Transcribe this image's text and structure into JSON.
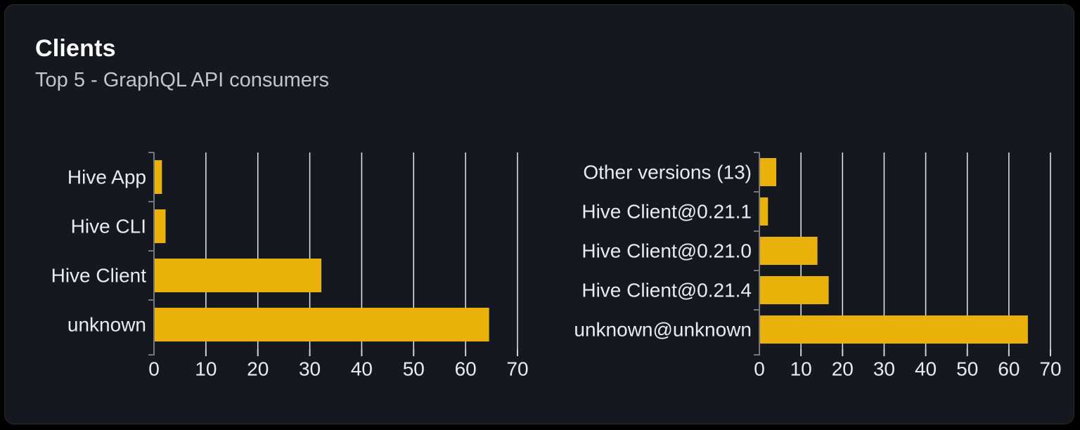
{
  "card": {
    "title": "Clients",
    "subtitle": "Top 5 - GraphQL API consumers"
  },
  "colors": {
    "bar": "#eab10b",
    "gridline": "#e6e8ec",
    "axis": "#74777d",
    "x_tick": "#cfd3d8",
    "chart_text": "#e9ebee",
    "card_background": "#15181e",
    "page_background": "#000000",
    "title_text": "#ffffff",
    "subtitle_text": "#c2c6cc"
  },
  "chart_data": [
    {
      "id": "clients-by-name",
      "type": "bar",
      "orientation": "horizontal",
      "title": "",
      "categories": [
        "Hive App",
        "Hive CLI",
        "Hive Client",
        "unknown"
      ],
      "values": [
        1.4,
        2.1,
        32.1,
        64.4
      ],
      "xlabel": "",
      "ylabel": "",
      "xlim": [
        0,
        70
      ],
      "xticks": [
        0,
        10,
        20,
        30,
        40,
        50,
        60,
        70
      ],
      "grid": true,
      "legend": false
    },
    {
      "id": "clients-by-version",
      "type": "bar",
      "orientation": "horizontal",
      "title": "",
      "categories": [
        "Other versions (13)",
        "Hive Client@0.21.1",
        "Hive Client@0.21.0",
        "Hive Client@0.21.4",
        "unknown@unknown"
      ],
      "values": [
        3.9,
        1.9,
        13.8,
        16.5,
        64.4
      ],
      "xlabel": "",
      "ylabel": "",
      "xlim": [
        0,
        70
      ],
      "xticks": [
        0,
        10,
        20,
        30,
        40,
        50,
        60,
        70
      ],
      "grid": true,
      "legend": false
    }
  ]
}
